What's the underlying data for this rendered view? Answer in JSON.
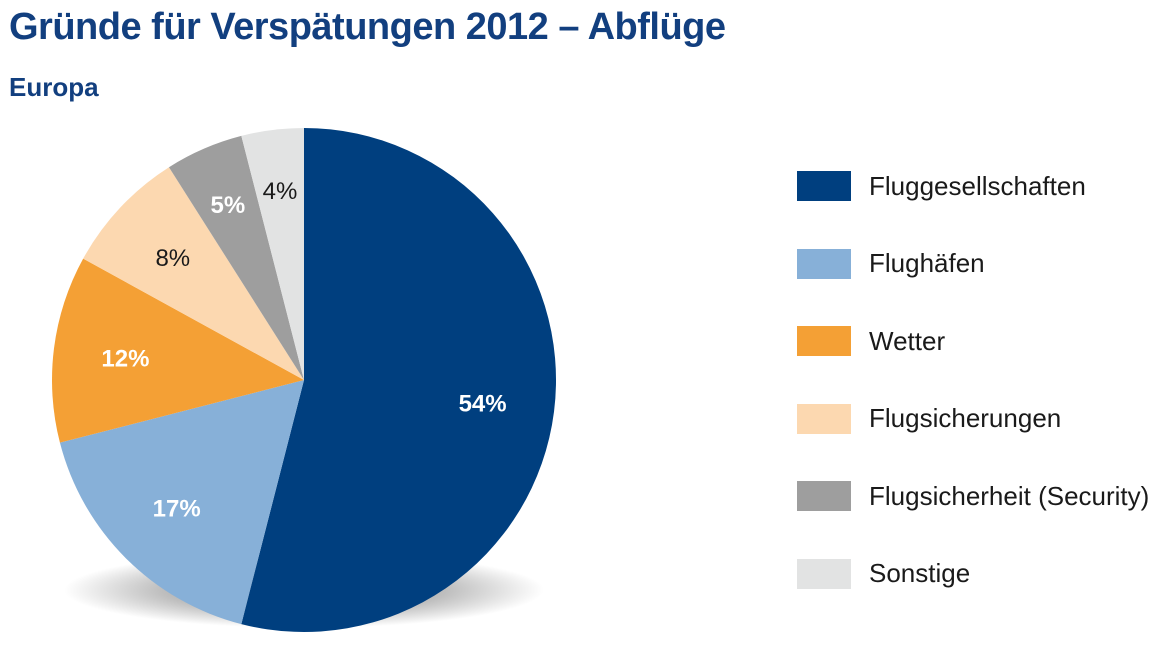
{
  "title": "Gründe für Verspätungen 2012 – Abflüge",
  "subtitle": "Europa",
  "chart_data": {
    "type": "pie",
    "title": "Gründe für Verspätungen 2012 – Abflüge",
    "subtitle": "Europa",
    "unit": "%",
    "start_angle": "12 o'clock",
    "direction": "clockwise",
    "legend_position": "right",
    "slices": [
      {
        "label": "Fluggesellschaften",
        "value": 54,
        "value_label": "54%",
        "color": "#003f7f",
        "label_color": "#ffffff"
      },
      {
        "label": "Flughäfen",
        "value": 17,
        "value_label": "17%",
        "color": "#87b0d8",
        "label_color": "#ffffff"
      },
      {
        "label": "Wetter",
        "value": 12,
        "value_label": "12%",
        "color": "#f4a035",
        "label_color": "#ffffff"
      },
      {
        "label": "Flugsicherungen",
        "value": 8,
        "value_label": "8%",
        "color": "#fcd8b0",
        "label_color": "#1a1a1a"
      },
      {
        "label": "Flugsicherheit (Security)",
        "value": 5,
        "value_label": "5%",
        "color": "#9e9e9e",
        "label_color": "#ffffff"
      },
      {
        "label": "Sonstige",
        "value": 4,
        "value_label": "4%",
        "color": "#e2e3e3",
        "label_color": "#1a1a1a"
      }
    ]
  }
}
